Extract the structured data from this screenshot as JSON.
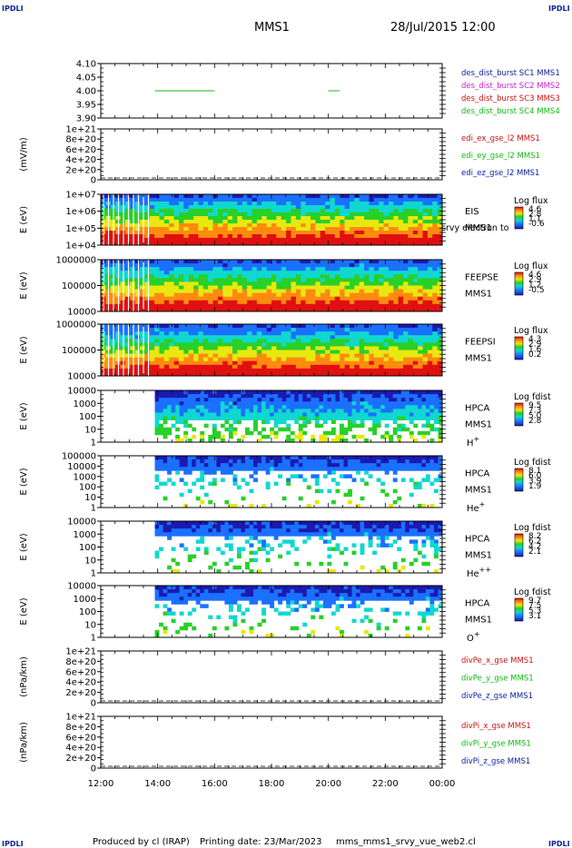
{
  "header": {
    "corner_label": "IPDLI",
    "mission": "MMS1",
    "date_time": "28/Jul/2015 12:00"
  },
  "footer": {
    "produced_by": "Produced by cl (IRAP)",
    "printing_date": "Printing date: 23/Mar/2023",
    "script_name": "mms_mms1_srvy_vue_web2.cl"
  },
  "colors": {
    "sc1": "#0a22a0",
    "sc2": "#cc22cc",
    "sc3": "#cc1111",
    "sc4": "#11bb11",
    "x": "#cc1111",
    "y": "#11bb11",
    "z": "#0a22a0"
  },
  "chart_data": [
    {
      "type": "line",
      "title": "",
      "ylabel": "",
      "ylim": [
        3.9,
        4.1
      ],
      "yticks": [
        "4.10",
        "4.05",
        "4.00",
        "3.95",
        "3.90"
      ],
      "x_units": "hours",
      "series": [
        {
          "name": "des_dist_burst SC1 MMS1",
          "color": "#0a22a0",
          "segments": []
        },
        {
          "name": "des_dist_burst SC2 MMS2",
          "color": "#cc22cc",
          "segments": []
        },
        {
          "name": "des_dist_burst SC3 MMS3",
          "color": "#cc1111",
          "segments": []
        },
        {
          "name": "des_dist_burst SC4 MMS4",
          "color": "#11bb11",
          "segments": [
            [
              [
                13.9,
                4.0
              ],
              [
                16.0,
                4.0
              ]
            ],
            [
              [
                20.0,
                4.0
              ],
              [
                20.4,
                4.0
              ]
            ]
          ]
        }
      ]
    },
    {
      "type": "line",
      "ylabel": "(mV/m)",
      "ylim": [
        0,
        1e+21
      ],
      "yticks": [
        "1e+21",
        "8e+20",
        "6e+20",
        "4e+20",
        "2e+20",
        "0"
      ],
      "zero_line": true,
      "series": [
        {
          "name": "edi_ex_gse_l2 MMS1",
          "color": "#cc1111"
        },
        {
          "name": "edi_ey_gse_l2 MMS1",
          "color": "#11bb11"
        },
        {
          "name": "edi_ez_gse_l2 MMS1",
          "color": "#0a22a0"
        }
      ]
    },
    {
      "type": "heatmap",
      "ylabel": "E (eV)",
      "yticks": [
        "1e+07",
        "1e+06",
        "1e+05",
        "1e+04"
      ],
      "instrument": "EIS",
      "species": "srvy electron to",
      "sc": "MMS1",
      "colorbar": {
        "label": "Log flux",
        "ticks": [
          "4.6",
          "2.8",
          "1.1",
          "-0.6"
        ]
      },
      "data_start_hour": 12.0
    },
    {
      "type": "heatmap",
      "ylabel": "E (eV)",
      "yticks": [
        "1000000",
        "100000",
        "10000"
      ],
      "instrument": "FEEPSE",
      "species": "",
      "sc": "MMS1",
      "colorbar": {
        "label": "Log flux",
        "ticks": [
          "4.6",
          "2.9",
          "1.2",
          "-0.5"
        ]
      },
      "data_start_hour": 12.0
    },
    {
      "type": "heatmap",
      "ylabel": "E (eV)",
      "yticks": [
        "1000000",
        "100000",
        "10000"
      ],
      "instrument": "FEEPSI",
      "species": "",
      "sc": "MMS1",
      "colorbar": {
        "label": "Log flux",
        "ticks": [
          "4.3",
          "2.9",
          "1.6",
          "0.2"
        ]
      },
      "data_start_hour": 12.0
    },
    {
      "type": "heatmap",
      "ylabel": "E (eV)",
      "yticks": [
        "10000",
        "1000",
        "100",
        "10",
        "1"
      ],
      "instrument": "HPCA",
      "species": "H",
      "species_charge": "+",
      "sc": "MMS1",
      "colorbar": {
        "label": "Log fdist",
        "ticks": [
          "9.5",
          "7.3",
          "5.0",
          "2.8"
        ]
      },
      "data_start_hour": 13.9
    },
    {
      "type": "heatmap",
      "ylabel": "E (eV)",
      "yticks": [
        "100000",
        "10000",
        "1000",
        "100",
        "10",
        "1"
      ],
      "instrument": "HPCA",
      "species": "He",
      "species_charge": "+",
      "sc": "MMS1",
      "colorbar": {
        "label": "Log fdist",
        "ticks": [
          "8.1",
          "6.0",
          "3.9",
          "1.9"
        ]
      },
      "data_start_hour": 13.9
    },
    {
      "type": "heatmap",
      "ylabel": "E (eV)",
      "yticks": [
        "10000",
        "1000",
        "100",
        "10",
        "1"
      ],
      "instrument": "HPCA",
      "species": "He",
      "species_charge": "++",
      "sc": "MMS1",
      "colorbar": {
        "label": "Log fdist",
        "ticks": [
          "8.2",
          "6.2",
          "4.2",
          "2.1"
        ]
      },
      "data_start_hour": 13.9
    },
    {
      "type": "heatmap",
      "ylabel": "E (eV)",
      "yticks": [
        "10000",
        "1000",
        "100",
        "10",
        "1"
      ],
      "instrument": "HPCA",
      "species": "O",
      "species_charge": "+",
      "sc": "MMS1",
      "colorbar": {
        "label": "Log fdist",
        "ticks": [
          "9.7",
          "7.5",
          "5.3",
          "3.1"
        ]
      },
      "data_start_hour": 13.9
    },
    {
      "type": "line",
      "ylabel": "(nPa/km)",
      "ylim": [
        0,
        1e+21
      ],
      "yticks": [
        "1e+21",
        "8e+20",
        "6e+20",
        "4e+20",
        "2e+20",
        "0"
      ],
      "zero_line": true,
      "series": [
        {
          "name": "divPe_x_gse MMS1",
          "color": "#cc1111"
        },
        {
          "name": "divPe_y_gse MMS1",
          "color": "#11bb11"
        },
        {
          "name": "divPe_z_gse MMS1",
          "color": "#0a22a0"
        }
      ]
    },
    {
      "type": "line",
      "ylabel": "(nPa/km)",
      "ylim": [
        0,
        1e+21
      ],
      "yticks": [
        "1e+21",
        "8e+20",
        "6e+20",
        "4e+20",
        "2e+20",
        "0"
      ],
      "zero_line": true,
      "series": [
        {
          "name": "divPi_x_gse MMS1",
          "color": "#cc1111"
        },
        {
          "name": "divPi_y_gse MMS1",
          "color": "#11bb11"
        },
        {
          "name": "divPi_z_gse MMS1",
          "color": "#0a22a0"
        }
      ]
    }
  ],
  "x_axis": {
    "range_hours": [
      12,
      24
    ],
    "tick_labels": [
      "12:00",
      "14:00",
      "16:00",
      "18:00",
      "20:00",
      "22:00",
      "00:00"
    ]
  }
}
